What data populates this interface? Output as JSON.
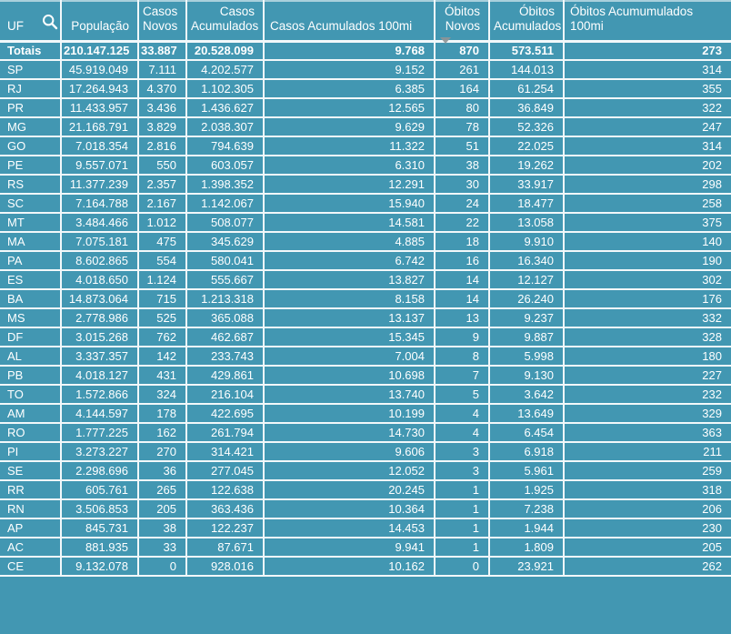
{
  "colors": {
    "table_background": "#4297b2",
    "grid_border": "#f2f8fa",
    "text": "#ffffff",
    "sort_indicator": "#8f9496"
  },
  "icons": {
    "search": "magnifier-glass",
    "sort": "triangle-down"
  },
  "table": {
    "columns": [
      {
        "label": "UF"
      },
      {
        "label": "População"
      },
      {
        "label": "Casos Novos"
      },
      {
        "label": "Casos Acumulados"
      },
      {
        "label": "Casos Acumulados 100mi"
      },
      {
        "label": "Óbitos Novos"
      },
      {
        "label": "Óbitos Acumulados"
      },
      {
        "label": "Óbitos Acumumulados 100mi"
      }
    ],
    "sort": {
      "column": "Óbitos Novos",
      "direction": "desc"
    },
    "rows": [
      [
        "Totais",
        "210.147.125",
        "33.887",
        "20.528.099",
        "9.768",
        "870",
        "573.511",
        "273"
      ],
      [
        "SP",
        "45.919.049",
        "7.111",
        "4.202.577",
        "9.152",
        "261",
        "144.013",
        "314"
      ],
      [
        "RJ",
        "17.264.943",
        "4.370",
        "1.102.305",
        "6.385",
        "164",
        "61.254",
        "355"
      ],
      [
        "PR",
        "11.433.957",
        "3.436",
        "1.436.627",
        "12.565",
        "80",
        "36.849",
        "322"
      ],
      [
        "MG",
        "21.168.791",
        "3.829",
        "2.038.307",
        "9.629",
        "78",
        "52.326",
        "247"
      ],
      [
        "GO",
        "7.018.354",
        "2.816",
        "794.639",
        "11.322",
        "51",
        "22.025",
        "314"
      ],
      [
        "PE",
        "9.557.071",
        "550",
        "603.057",
        "6.310",
        "38",
        "19.262",
        "202"
      ],
      [
        "RS",
        "11.377.239",
        "2.357",
        "1.398.352",
        "12.291",
        "30",
        "33.917",
        "298"
      ],
      [
        "SC",
        "7.164.788",
        "2.167",
        "1.142.067",
        "15.940",
        "24",
        "18.477",
        "258"
      ],
      [
        "MT",
        "3.484.466",
        "1.012",
        "508.077",
        "14.581",
        "22",
        "13.058",
        "375"
      ],
      [
        "MA",
        "7.075.181",
        "475",
        "345.629",
        "4.885",
        "18",
        "9.910",
        "140"
      ],
      [
        "PA",
        "8.602.865",
        "554",
        "580.041",
        "6.742",
        "16",
        "16.340",
        "190"
      ],
      [
        "ES",
        "4.018.650",
        "1.124",
        "555.667",
        "13.827",
        "14",
        "12.127",
        "302"
      ],
      [
        "BA",
        "14.873.064",
        "715",
        "1.213.318",
        "8.158",
        "14",
        "26.240",
        "176"
      ],
      [
        "MS",
        "2.778.986",
        "525",
        "365.088",
        "13.137",
        "13",
        "9.237",
        "332"
      ],
      [
        "DF",
        "3.015.268",
        "762",
        "462.687",
        "15.345",
        "9",
        "9.887",
        "328"
      ],
      [
        "AL",
        "3.337.357",
        "142",
        "233.743",
        "7.004",
        "8",
        "5.998",
        "180"
      ],
      [
        "PB",
        "4.018.127",
        "431",
        "429.861",
        "10.698",
        "7",
        "9.130",
        "227"
      ],
      [
        "TO",
        "1.572.866",
        "324",
        "216.104",
        "13.740",
        "5",
        "3.642",
        "232"
      ],
      [
        "AM",
        "4.144.597",
        "178",
        "422.695",
        "10.199",
        "4",
        "13.649",
        "329"
      ],
      [
        "RO",
        "1.777.225",
        "162",
        "261.794",
        "14.730",
        "4",
        "6.454",
        "363"
      ],
      [
        "PI",
        "3.273.227",
        "270",
        "314.421",
        "9.606",
        "3",
        "6.918",
        "211"
      ],
      [
        "SE",
        "2.298.696",
        "36",
        "277.045",
        "12.052",
        "3",
        "5.961",
        "259"
      ],
      [
        "RR",
        "605.761",
        "265",
        "122.638",
        "20.245",
        "1",
        "1.925",
        "318"
      ],
      [
        "RN",
        "3.506.853",
        "205",
        "363.436",
        "10.364",
        "1",
        "7.238",
        "206"
      ],
      [
        "AP",
        "845.731",
        "38",
        "122.237",
        "14.453",
        "1",
        "1.944",
        "230"
      ],
      [
        "AC",
        "881.935",
        "33",
        "87.671",
        "9.941",
        "1",
        "1.809",
        "205"
      ],
      [
        "CE",
        "9.132.078",
        "0",
        "928.016",
        "10.162",
        "0",
        "23.921",
        "262"
      ]
    ]
  }
}
